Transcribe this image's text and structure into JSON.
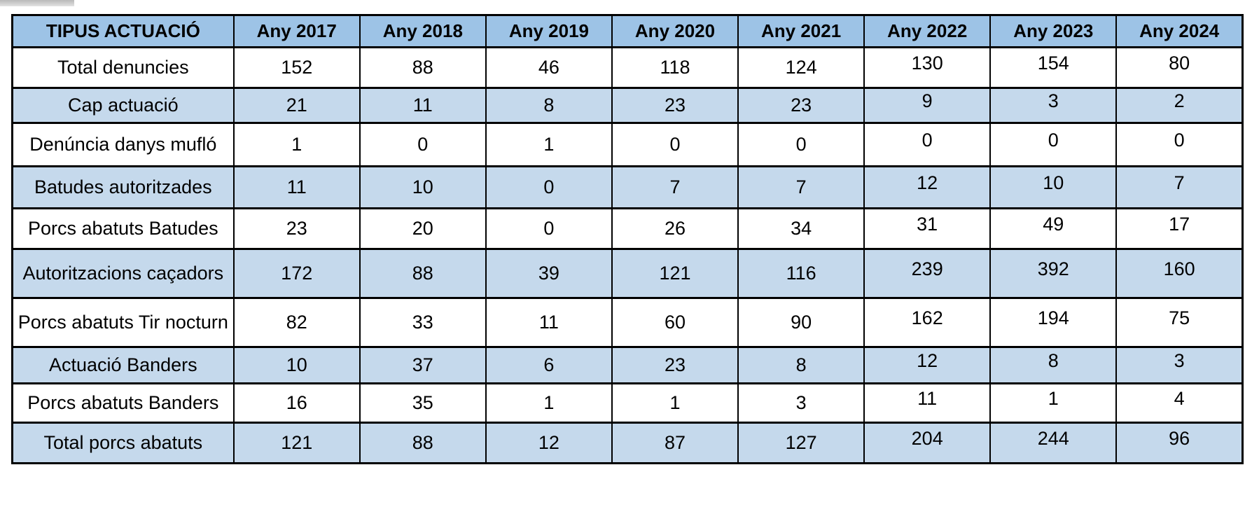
{
  "colors": {
    "header_bg": "#9dc3e6",
    "band_bg": "#c5d9ec",
    "border": "#000000",
    "text": "#000000",
    "page_bg": "#ffffff"
  },
  "table": {
    "columns": [
      "TIPUS ACTUACIÓ",
      "Any 2017",
      "Any 2018",
      "Any 2019",
      "Any 2020",
      "Any 2021",
      "Any 2022",
      "Any 2023",
      "Any 2024"
    ],
    "rows": [
      {
        "label": "Total denuncies",
        "values": [
          152,
          88,
          46,
          118,
          124,
          130,
          154,
          80
        ]
      },
      {
        "label": "Cap actuació",
        "values": [
          21,
          11,
          8,
          23,
          23,
          9,
          3,
          2
        ]
      },
      {
        "label": "Denúncia danys mufló",
        "values": [
          1,
          0,
          1,
          0,
          0,
          0,
          0,
          0
        ]
      },
      {
        "label": "Batudes autoritzades",
        "values": [
          11,
          10,
          0,
          7,
          7,
          12,
          10,
          7
        ]
      },
      {
        "label": "Porcs abatuts Batudes",
        "values": [
          23,
          20,
          0,
          26,
          34,
          31,
          49,
          17
        ]
      },
      {
        "label": "Autoritzacions caçadors",
        "values": [
          172,
          88,
          39,
          121,
          116,
          239,
          392,
          160
        ]
      },
      {
        "label": "Porcs abatuts Tir nocturn",
        "values": [
          82,
          33,
          11,
          60,
          90,
          162,
          194,
          75
        ]
      },
      {
        "label": "Actuació Banders",
        "values": [
          10,
          37,
          6,
          23,
          8,
          12,
          8,
          3
        ]
      },
      {
        "label": "Porcs abatuts Banders",
        "values": [
          16,
          35,
          1,
          1,
          3,
          11,
          1,
          4
        ]
      },
      {
        "label": "Total porcs abatuts",
        "values": [
          121,
          88,
          12,
          87,
          127,
          204,
          244,
          96
        ]
      }
    ]
  }
}
